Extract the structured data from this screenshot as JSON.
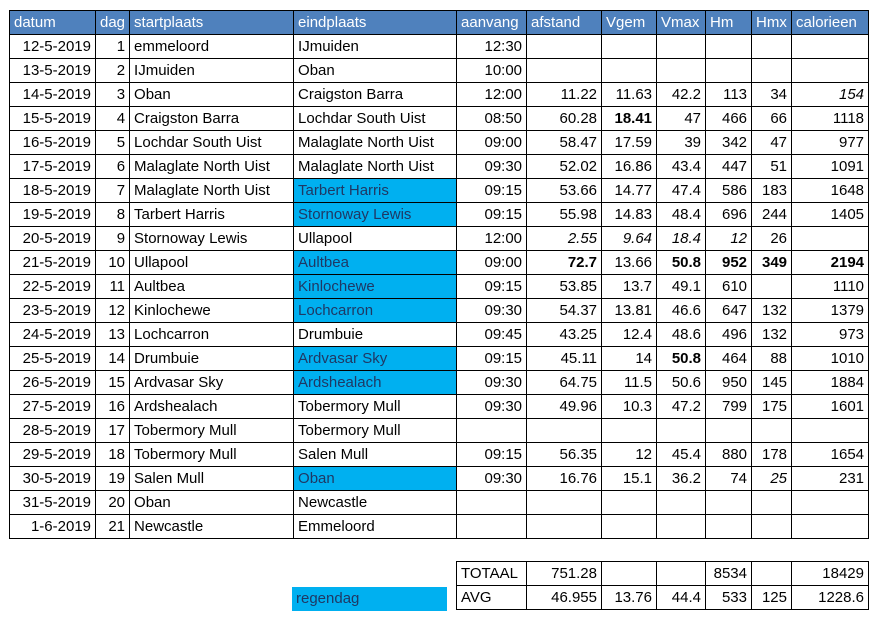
{
  "headers": [
    "datum",
    "dag",
    "startplaats",
    "eindplaats",
    "aanvang",
    "afstand",
    "Vgem",
    "Vmax",
    "Hm",
    "Hmx",
    "calorieen"
  ],
  "rows": [
    {
      "datum": "12-5-2019",
      "dag": "1",
      "start": "emmeloord",
      "eind": "IJmuiden",
      "aanvang": "12:30",
      "afstand": "",
      "vgem": "",
      "vmax": "",
      "hm": "",
      "hmx": "",
      "cal": ""
    },
    {
      "datum": "13-5-2019",
      "dag": "2",
      "start": "IJmuiden",
      "eind": "Oban",
      "aanvang": "10:00",
      "afstand": "",
      "vgem": "",
      "vmax": "",
      "hm": "",
      "hmx": "",
      "cal": ""
    },
    {
      "datum": "14-5-2019",
      "dag": "3",
      "start": "Oban",
      "eind": "Craigston Barra",
      "aanvang": "12:00",
      "afstand": "11.22",
      "vgem": "11.63",
      "vmax": "42.2",
      "hm": "113",
      "hmx": "34",
      "cal": "154"
    },
    {
      "datum": "15-5-2019",
      "dag": "4",
      "start": "Craigston Barra",
      "eind": "Lochdar South Uist",
      "aanvang": "08:50",
      "afstand": "60.28",
      "vgem": "18.41",
      "vmax": "47",
      "hm": "466",
      "hmx": "66",
      "cal": "1118"
    },
    {
      "datum": "16-5-2019",
      "dag": "5",
      "start": "Lochdar South Uist",
      "eind": "Malaglate North Uist",
      "aanvang": "09:00",
      "afstand": "58.47",
      "vgem": "17.59",
      "vmax": "39",
      "hm": "342",
      "hmx": "47",
      "cal": "977"
    },
    {
      "datum": "17-5-2019",
      "dag": "6",
      "start": "Malaglate North Uist",
      "eind": "Malaglate North Uist",
      "aanvang": "09:30",
      "afstand": "52.02",
      "vgem": "16.86",
      "vmax": "43.4",
      "hm": "447",
      "hmx": "51",
      "cal": "1091"
    },
    {
      "datum": "18-5-2019",
      "dag": "7",
      "start": "Malaglate North Uist",
      "eind": "Tarbert Harris",
      "aanvang": "09:15",
      "afstand": "53.66",
      "vgem": "14.77",
      "vmax": "47.4",
      "hm": "586",
      "hmx": "183",
      "cal": "1648"
    },
    {
      "datum": "19-5-2019",
      "dag": "8",
      "start": "Tarbert Harris",
      "eind": "Stornoway Lewis",
      "aanvang": "09:15",
      "afstand": "55.98",
      "vgem": "14.83",
      "vmax": "48.4",
      "hm": "696",
      "hmx": "244",
      "cal": "1405"
    },
    {
      "datum": "20-5-2019",
      "dag": "9",
      "start": "Stornoway Lewis",
      "eind": "Ullapool",
      "aanvang": "12:00",
      "afstand": "2.55",
      "vgem": "9.64",
      "vmax": "18.4",
      "hm": "12",
      "hmx": "26",
      "cal": ""
    },
    {
      "datum": "21-5-2019",
      "dag": "10",
      "start": "Ullapool",
      "eind": "Aultbea",
      "aanvang": "09:00",
      "afstand": "72.7",
      "vgem": "13.66",
      "vmax": "50.8",
      "hm": "952",
      "hmx": "349",
      "cal": "2194"
    },
    {
      "datum": "22-5-2019",
      "dag": "11",
      "start": "Aultbea",
      "eind": "Kinlochewe",
      "aanvang": "09:15",
      "afstand": "53.85",
      "vgem": "13.7",
      "vmax": "49.1",
      "hm": "610",
      "hmx": "",
      "cal": "1110"
    },
    {
      "datum": "23-5-2019",
      "dag": "12",
      "start": "Kinlochewe",
      "eind": "Lochcarron",
      "aanvang": "09:30",
      "afstand": "54.37",
      "vgem": "13.81",
      "vmax": "46.6",
      "hm": "647",
      "hmx": "132",
      "cal": "1379"
    },
    {
      "datum": "24-5-2019",
      "dag": "13",
      "start": "Lochcarron",
      "eind": "Drumbuie",
      "aanvang": "09:45",
      "afstand": "43.25",
      "vgem": "12.4",
      "vmax": "48.6",
      "hm": "496",
      "hmx": "132",
      "cal": "973"
    },
    {
      "datum": "25-5-2019",
      "dag": "14",
      "start": "Drumbuie",
      "eind": "Ardvasar Sky",
      "aanvang": "09:15",
      "afstand": "45.11",
      "vgem": "14",
      "vmax": "50.8",
      "hm": "464",
      "hmx": "88",
      "cal": "1010"
    },
    {
      "datum": "26-5-2019",
      "dag": "15",
      "start": "Ardvasar Sky",
      "eind": "Ardshealach",
      "aanvang": "09:30",
      "afstand": "64.75",
      "vgem": "11.5",
      "vmax": "50.6",
      "hm": "950",
      "hmx": "145",
      "cal": "1884"
    },
    {
      "datum": "27-5-2019",
      "dag": "16",
      "start": "Ardshealach",
      "eind": "Tobermory Mull",
      "aanvang": "09:30",
      "afstand": "49.96",
      "vgem": "10.3",
      "vmax": "47.2",
      "hm": "799",
      "hmx": "175",
      "cal": "1601"
    },
    {
      "datum": "28-5-2019",
      "dag": "17",
      "start": "Tobermory Mull",
      "eind": "Tobermory Mull",
      "aanvang": "",
      "afstand": "",
      "vgem": "",
      "vmax": "",
      "hm": "",
      "hmx": "",
      "cal": ""
    },
    {
      "datum": "29-5-2019",
      "dag": "18",
      "start": "Tobermory Mull",
      "eind": "Salen Mull",
      "aanvang": "09:15",
      "afstand": "56.35",
      "vgem": "12",
      "vmax": "45.4",
      "hm": "880",
      "hmx": "178",
      "cal": "1654"
    },
    {
      "datum": "30-5-2019",
      "dag": "19",
      "start": "Salen Mull",
      "eind": "Oban",
      "aanvang": "09:30",
      "afstand": "16.76",
      "vgem": "15.1",
      "vmax": "36.2",
      "hm": "74",
      "hmx": "25",
      "cal": "231"
    },
    {
      "datum": "31-5-2019",
      "dag": "20",
      "start": "Oban",
      "eind": "Newcastle",
      "aanvang": "",
      "afstand": "",
      "vgem": "",
      "vmax": "",
      "hm": "",
      "hmx": "",
      "cal": ""
    },
    {
      "datum": "1-6-2019",
      "dag": "21",
      "start": "Newcastle",
      "eind": "Emmeloord",
      "aanvang": "",
      "afstand": "",
      "vgem": "",
      "vmax": "",
      "hm": "",
      "hmx": "",
      "cal": ""
    }
  ],
  "blue_rows": [
    6,
    7,
    9,
    10,
    11,
    13,
    14,
    18
  ],
  "bold_cells": {
    "3": [
      "vgem"
    ],
    "9": [
      "afstand",
      "vmax",
      "hm",
      "hmx",
      "cal"
    ],
    "13": [
      "vmax"
    ]
  },
  "italic_cells": {
    "2": [
      "cal"
    ],
    "8": [
      "afstand",
      "vgem",
      "vmax",
      "hm"
    ],
    "18": [
      "hmx"
    ]
  },
  "totaal": {
    "label": "TOTAAL",
    "afstand": "751.28",
    "vgem": "",
    "vmax": "",
    "hm": "8534",
    "hmx": "",
    "cal": "18429"
  },
  "avg": {
    "label": "AVG",
    "afstand": "46.955",
    "vgem": "13.76",
    "vmax": "44.4",
    "hm": "533",
    "hmx": "125",
    "cal": "1228.6"
  },
  "legend": {
    "label": "regendag"
  },
  "colors": {
    "header_bg": "#4f81bd",
    "highlight": "#00b0f0"
  }
}
